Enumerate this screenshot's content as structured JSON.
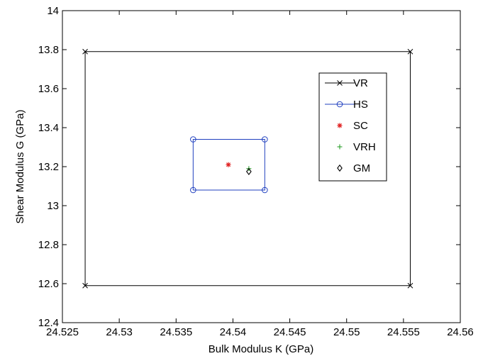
{
  "chart_data": {
    "type": "scatter",
    "title": "",
    "xlabel": "Bulk Modulus K (GPa)",
    "ylabel": "Shear Modulus G (GPa)",
    "xlim": [
      24.525,
      24.56
    ],
    "ylim": [
      12.4,
      14
    ],
    "xticks": [
      "24.525",
      "24.53",
      "24.535",
      "24.54",
      "24.545",
      "24.55",
      "24.555",
      "24.56"
    ],
    "xtick_values": [
      24.525,
      24.53,
      24.535,
      24.54,
      24.545,
      24.55,
      24.555,
      24.56
    ],
    "yticks": [
      "12.4",
      "12.6",
      "12.8",
      "13",
      "13.2",
      "13.4",
      "13.6",
      "13.8",
      "14"
    ],
    "ytick_values": [
      12.4,
      12.6,
      12.8,
      13.0,
      13.2,
      13.4,
      13.6,
      13.8,
      14.0
    ],
    "grid": false,
    "legend_position": "top-right",
    "series": [
      {
        "name": "VR",
        "marker": "x",
        "color": "#000000",
        "line": true,
        "points": [
          [
            24.527,
            12.59
          ],
          [
            24.527,
            13.79
          ],
          [
            24.5556,
            13.79
          ],
          [
            24.5556,
            12.59
          ],
          [
            24.527,
            12.59
          ]
        ]
      },
      {
        "name": "HS",
        "marker": "circle",
        "color": "#1f3fbf",
        "line": true,
        "points": [
          [
            24.5365,
            13.08
          ],
          [
            24.5365,
            13.34
          ],
          [
            24.5428,
            13.34
          ],
          [
            24.5428,
            13.08
          ],
          [
            24.5365,
            13.08
          ]
        ]
      },
      {
        "name": "SC",
        "marker": "asterisk",
        "color": "#e02020",
        "line": false,
        "points": [
          [
            24.5396,
            13.21
          ]
        ]
      },
      {
        "name": "VRH",
        "marker": "plus",
        "color": "#2ca02c",
        "line": false,
        "points": [
          [
            24.5414,
            13.19
          ]
        ]
      },
      {
        "name": "GM",
        "marker": "diamond",
        "color": "#000000",
        "line": false,
        "points": [
          [
            24.5414,
            13.175
          ]
        ]
      }
    ]
  }
}
